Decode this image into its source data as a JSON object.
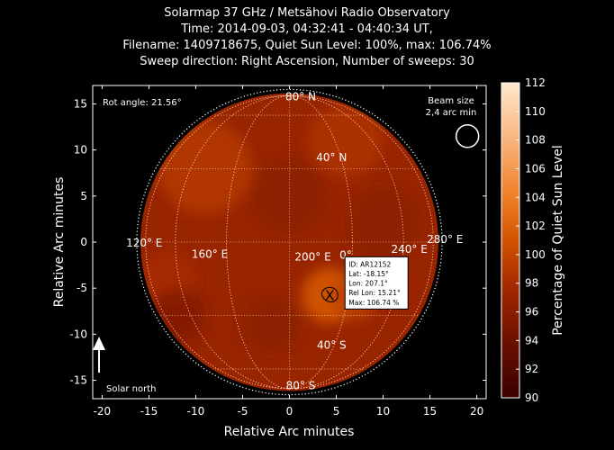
{
  "chart_data": {
    "type": "heatmap",
    "title_lines": [
      "Solarmap 37 GHz / Metsähovi Radio Observatory",
      "Time: 2014-09-03, 04:32:41 - 04:40:34 UT,",
      "Filename: 1409718675, Quiet Sun Level: 100%, max: 106.74%",
      "Sweep direction: Right Ascension, Number of sweeps: 30"
    ],
    "xlabel": "Relative Arc minutes",
    "ylabel": "Relative Arc minutes",
    "xlim": [
      -21,
      21
    ],
    "ylim": [
      -17,
      17
    ],
    "x_ticks": [
      -20,
      -15,
      -10,
      -5,
      0,
      5,
      10,
      15,
      20
    ],
    "y_ticks": [
      -15,
      -10,
      -5,
      0,
      5,
      10,
      15
    ],
    "colorbar": {
      "label": "Percentage of Quiet Sun Level",
      "range": [
        90,
        112
      ],
      "ticks": [
        90,
        92,
        94,
        96,
        98,
        100,
        102,
        104,
        106,
        108,
        110,
        112
      ]
    },
    "solar_disk_radius_arcmin": 15.9,
    "solar_limb_radius_arcmin": 16.3,
    "rot_angle_label": "Rot angle: 21.56°",
    "beam": {
      "label_line1": "Beam size",
      "label_line2": "2,4 arc min",
      "x": 19,
      "y": 11.5,
      "radius": 1.2
    },
    "solar_north_label": "Solar north",
    "grid_labels": [
      {
        "text": "80° N",
        "x": 1.2,
        "y": 15.8
      },
      {
        "text": "40° N",
        "x": 4.5,
        "y": 9.2
      },
      {
        "text": "120° E",
        "x": -15.5,
        "y": -0.1
      },
      {
        "text": "160° E",
        "x": -8.5,
        "y": -1.3
      },
      {
        "text": "200° E",
        "x": 2.5,
        "y": -1.6
      },
      {
        "text": "0°",
        "x": 6.0,
        "y": -1.4
      },
      {
        "text": "240° E",
        "x": 12.8,
        "y": -0.8
      },
      {
        "text": "280° E",
        "x": 16.6,
        "y": 0.3
      },
      {
        "text": "40° S",
        "x": 4.5,
        "y": -11.2
      },
      {
        "text": "80° S",
        "x": 1.2,
        "y": -15.6
      }
    ],
    "active_region": {
      "x": 4.3,
      "y": -5.8,
      "info": [
        "ID: AR12152",
        "Lat: -18.15°",
        "Lon: 207.1°",
        "Rel Lon: 15.21°",
        "Max: 106.74 %"
      ]
    },
    "hot_spots": [
      {
        "x": -9,
        "y": 8,
        "r": 5,
        "v": 99
      },
      {
        "x": 6,
        "y": 11,
        "r": 4,
        "v": 98.5
      },
      {
        "x": 4.3,
        "y": -5.8,
        "r": 3,
        "v": 101.5
      },
      {
        "x": 7,
        "y": -6,
        "r": 2.5,
        "v": 99.5
      },
      {
        "x": -13,
        "y": -4,
        "r": 3,
        "v": 98
      }
    ],
    "cool_spots": [
      {
        "x": 0,
        "y": 5,
        "r": 4,
        "v": 96
      },
      {
        "x": -12,
        "y": -8,
        "r": 3,
        "v": 95.5
      },
      {
        "x": -2,
        "y": -9,
        "r": 3,
        "v": 96
      },
      {
        "x": 10,
        "y": 2,
        "r": 4,
        "v": 96
      }
    ],
    "base_value": 97
  }
}
